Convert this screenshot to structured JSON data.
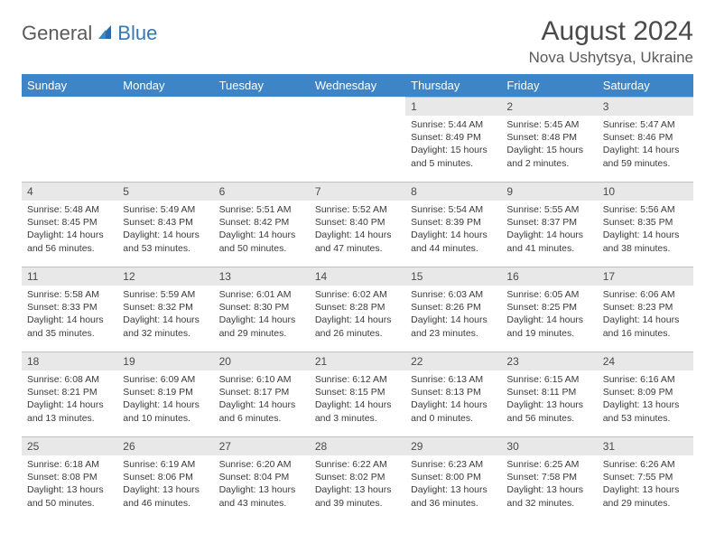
{
  "logo": {
    "part1": "General",
    "part2": "Blue"
  },
  "title": "August 2024",
  "location": "Nova Ushytsya, Ukraine",
  "colors": {
    "header_bg": "#3d85c6",
    "header_text": "#ffffff",
    "daynum_bg": "#e8e8e8",
    "text": "#4a4a4a",
    "logo_blue": "#3478b8",
    "logo_grey": "#5a5a5a"
  },
  "day_labels": [
    "Sunday",
    "Monday",
    "Tuesday",
    "Wednesday",
    "Thursday",
    "Friday",
    "Saturday"
  ],
  "weeks": [
    [
      null,
      null,
      null,
      null,
      {
        "n": "1",
        "sr": "5:44 AM",
        "ss": "8:49 PM",
        "dl": "15 hours and 5 minutes."
      },
      {
        "n": "2",
        "sr": "5:45 AM",
        "ss": "8:48 PM",
        "dl": "15 hours and 2 minutes."
      },
      {
        "n": "3",
        "sr": "5:47 AM",
        "ss": "8:46 PM",
        "dl": "14 hours and 59 minutes."
      }
    ],
    [
      {
        "n": "4",
        "sr": "5:48 AM",
        "ss": "8:45 PM",
        "dl": "14 hours and 56 minutes."
      },
      {
        "n": "5",
        "sr": "5:49 AM",
        "ss": "8:43 PM",
        "dl": "14 hours and 53 minutes."
      },
      {
        "n": "6",
        "sr": "5:51 AM",
        "ss": "8:42 PM",
        "dl": "14 hours and 50 minutes."
      },
      {
        "n": "7",
        "sr": "5:52 AM",
        "ss": "8:40 PM",
        "dl": "14 hours and 47 minutes."
      },
      {
        "n": "8",
        "sr": "5:54 AM",
        "ss": "8:39 PM",
        "dl": "14 hours and 44 minutes."
      },
      {
        "n": "9",
        "sr": "5:55 AM",
        "ss": "8:37 PM",
        "dl": "14 hours and 41 minutes."
      },
      {
        "n": "10",
        "sr": "5:56 AM",
        "ss": "8:35 PM",
        "dl": "14 hours and 38 minutes."
      }
    ],
    [
      {
        "n": "11",
        "sr": "5:58 AM",
        "ss": "8:33 PM",
        "dl": "14 hours and 35 minutes."
      },
      {
        "n": "12",
        "sr": "5:59 AM",
        "ss": "8:32 PM",
        "dl": "14 hours and 32 minutes."
      },
      {
        "n": "13",
        "sr": "6:01 AM",
        "ss": "8:30 PM",
        "dl": "14 hours and 29 minutes."
      },
      {
        "n": "14",
        "sr": "6:02 AM",
        "ss": "8:28 PM",
        "dl": "14 hours and 26 minutes."
      },
      {
        "n": "15",
        "sr": "6:03 AM",
        "ss": "8:26 PM",
        "dl": "14 hours and 23 minutes."
      },
      {
        "n": "16",
        "sr": "6:05 AM",
        "ss": "8:25 PM",
        "dl": "14 hours and 19 minutes."
      },
      {
        "n": "17",
        "sr": "6:06 AM",
        "ss": "8:23 PM",
        "dl": "14 hours and 16 minutes."
      }
    ],
    [
      {
        "n": "18",
        "sr": "6:08 AM",
        "ss": "8:21 PM",
        "dl": "14 hours and 13 minutes."
      },
      {
        "n": "19",
        "sr": "6:09 AM",
        "ss": "8:19 PM",
        "dl": "14 hours and 10 minutes."
      },
      {
        "n": "20",
        "sr": "6:10 AM",
        "ss": "8:17 PM",
        "dl": "14 hours and 6 minutes."
      },
      {
        "n": "21",
        "sr": "6:12 AM",
        "ss": "8:15 PM",
        "dl": "14 hours and 3 minutes."
      },
      {
        "n": "22",
        "sr": "6:13 AM",
        "ss": "8:13 PM",
        "dl": "14 hours and 0 minutes."
      },
      {
        "n": "23",
        "sr": "6:15 AM",
        "ss": "8:11 PM",
        "dl": "13 hours and 56 minutes."
      },
      {
        "n": "24",
        "sr": "6:16 AM",
        "ss": "8:09 PM",
        "dl": "13 hours and 53 minutes."
      }
    ],
    [
      {
        "n": "25",
        "sr": "6:18 AM",
        "ss": "8:08 PM",
        "dl": "13 hours and 50 minutes."
      },
      {
        "n": "26",
        "sr": "6:19 AM",
        "ss": "8:06 PM",
        "dl": "13 hours and 46 minutes."
      },
      {
        "n": "27",
        "sr": "6:20 AM",
        "ss": "8:04 PM",
        "dl": "13 hours and 43 minutes."
      },
      {
        "n": "28",
        "sr": "6:22 AM",
        "ss": "8:02 PM",
        "dl": "13 hours and 39 minutes."
      },
      {
        "n": "29",
        "sr": "6:23 AM",
        "ss": "8:00 PM",
        "dl": "13 hours and 36 minutes."
      },
      {
        "n": "30",
        "sr": "6:25 AM",
        "ss": "7:58 PM",
        "dl": "13 hours and 32 minutes."
      },
      {
        "n": "31",
        "sr": "6:26 AM",
        "ss": "7:55 PM",
        "dl": "13 hours and 29 minutes."
      }
    ]
  ],
  "labels": {
    "sunrise": "Sunrise:",
    "sunset": "Sunset:",
    "daylight": "Daylight:"
  }
}
